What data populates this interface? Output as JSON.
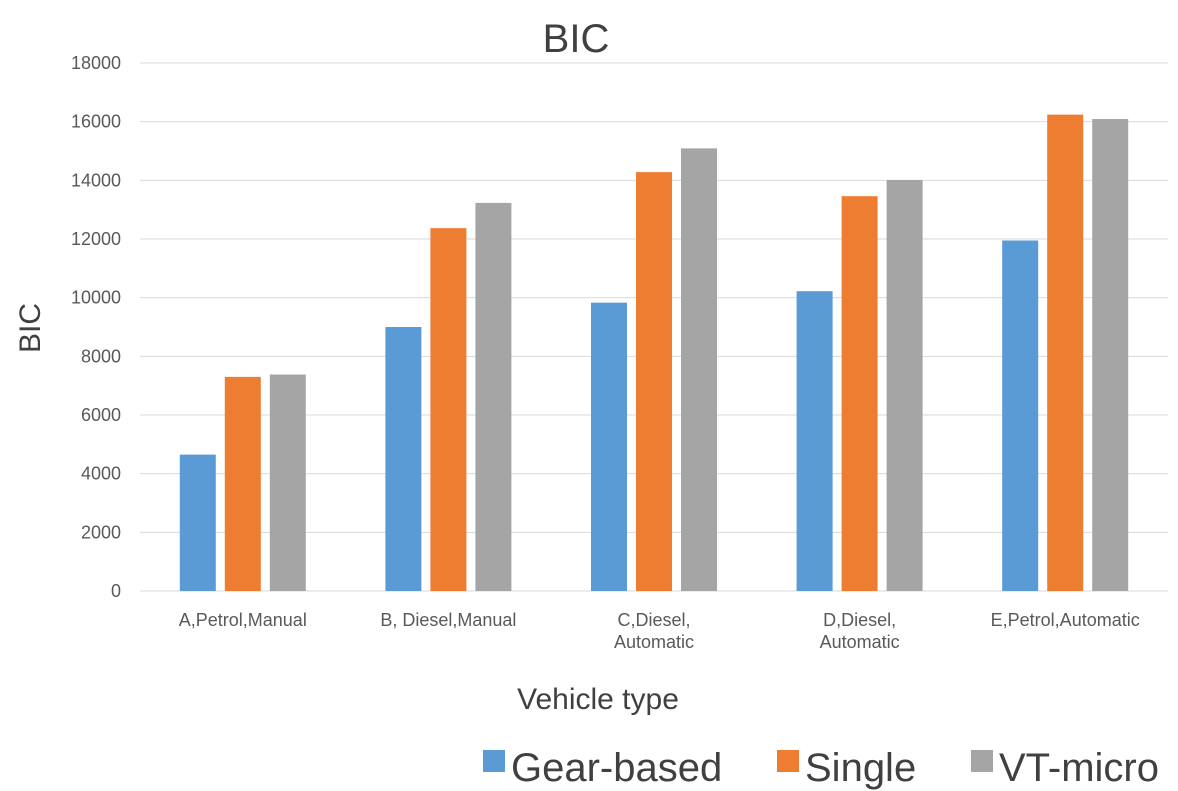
{
  "chart_data": {
    "type": "bar",
    "title": "BIC",
    "xlabel": "Vehicle type",
    "ylabel": "BIC",
    "ylim": [
      0,
      18000
    ],
    "yticks": [
      0,
      2000,
      4000,
      6000,
      8000,
      10000,
      12000,
      14000,
      16000,
      18000
    ],
    "grid": true,
    "legend_position": "bottom-right",
    "categories": [
      [
        "A,Petrol,Manual"
      ],
      [
        "B, Diesel,Manual"
      ],
      [
        "C,Diesel,",
        "Automatic"
      ],
      [
        "D,Diesel,",
        "Automatic"
      ],
      [
        "E,Petrol,Automatic"
      ]
    ],
    "series": [
      {
        "name": "Gear-based",
        "color": "#5B9BD5",
        "values": [
          4650,
          9000,
          9830,
          10220,
          11950
        ]
      },
      {
        "name": "Single",
        "color": "#ED7D31",
        "values": [
          7300,
          12370,
          14280,
          13460,
          16240
        ]
      },
      {
        "name": "VT-micro",
        "color": "#A5A5A5",
        "values": [
          7380,
          13230,
          15090,
          14010,
          16090
        ]
      }
    ]
  }
}
